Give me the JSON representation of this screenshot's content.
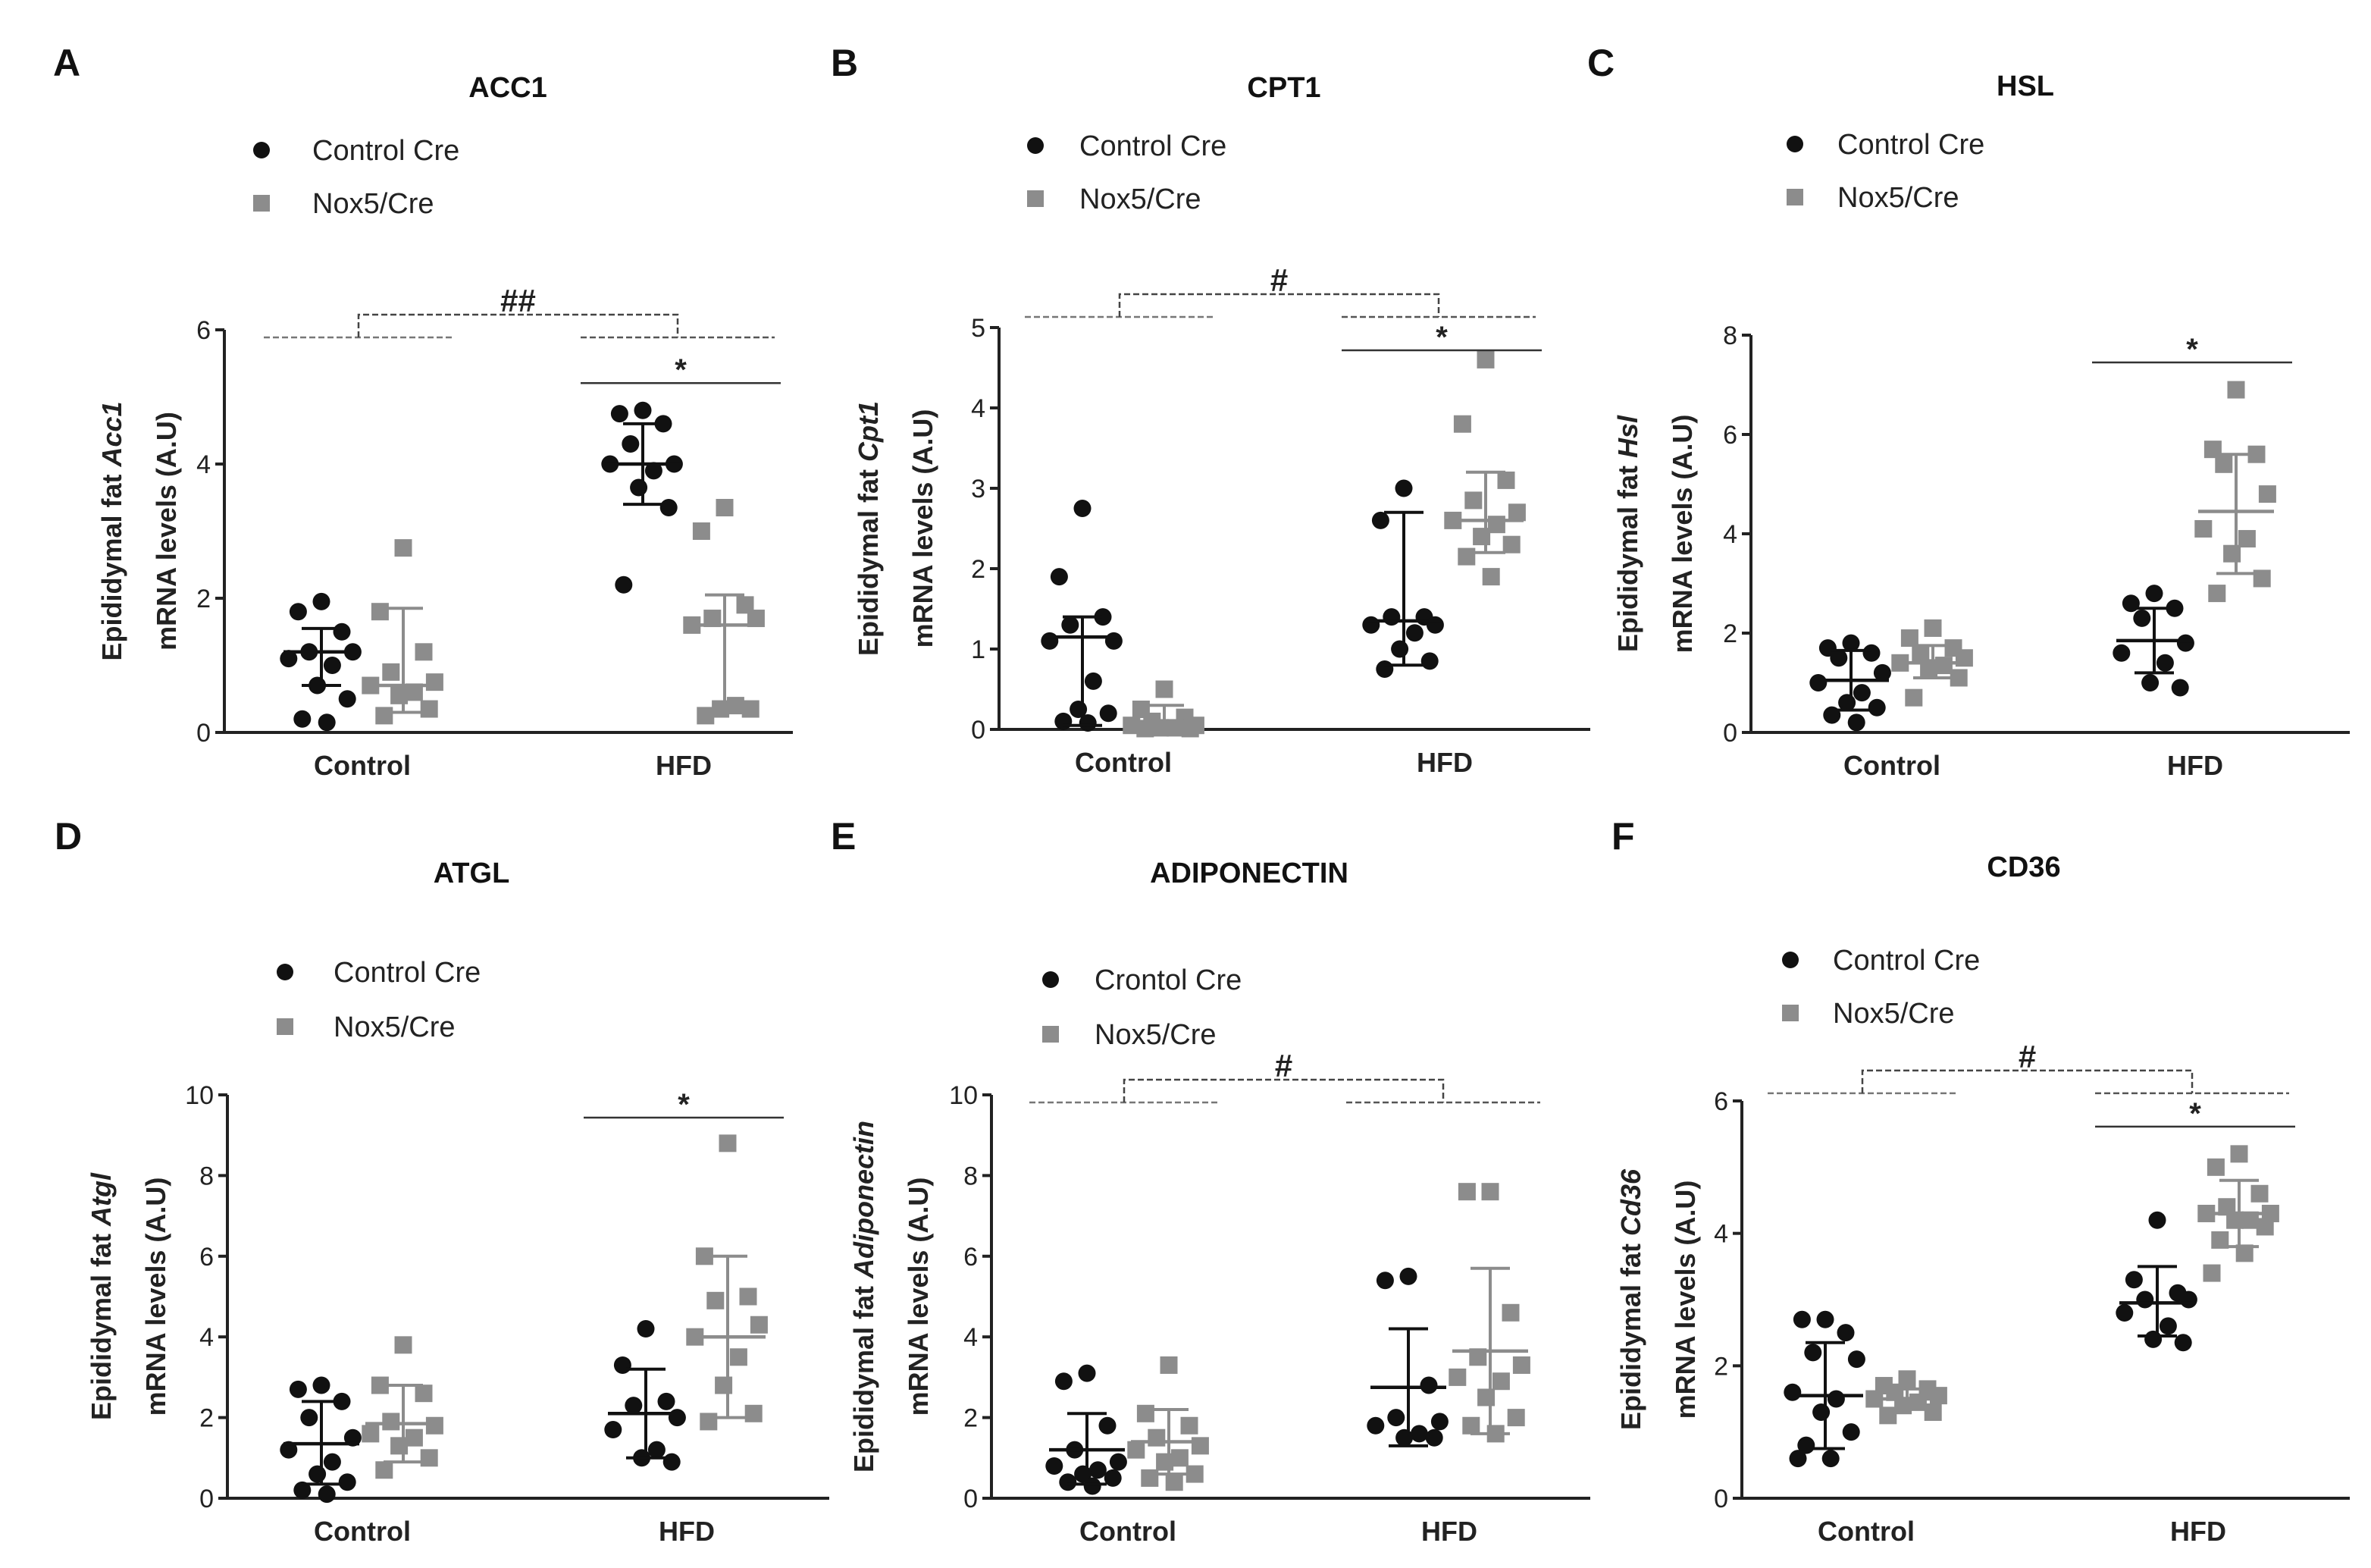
{
  "colors": {
    "control": "#111111",
    "nox": "#8c8c8c",
    "axis": "#222222"
  },
  "chart_data": [
    {
      "type": "scatter",
      "panel_letter": "A",
      "title": "ACC1",
      "ylabel_line1_prefix": "Epididymal fat ",
      "ylabel_gene": "Acc1",
      "ylabel_line2": "mRNA levels (A.U)",
      "categories": [
        "Control",
        "HFD"
      ],
      "ylim": [
        0,
        6
      ],
      "yticks": [
        "0",
        "2",
        "4",
        "6"
      ],
      "legend": [
        "Control  Cre",
        "Nox5/Cre"
      ],
      "series": [
        {
          "name": "Control  Cre",
          "marker": "circle",
          "groups": [
            {
              "values": [
                1.95,
                1.8,
                1.5,
                1.2,
                1.2,
                1.1,
                1.0,
                0.7,
                0.5,
                0.2,
                0.15
              ],
              "mean": 1.2,
              "sd_low": 0.7,
              "sd_high": 1.55
            },
            {
              "values": [
                4.8,
                4.75,
                4.6,
                4.3,
                4.0,
                4.0,
                3.9,
                3.65,
                3.35,
                2.2
              ],
              "mean": 4.0,
              "sd_low": 3.4,
              "sd_high": 4.6
            }
          ]
        },
        {
          "name": "Nox5/Cre",
          "marker": "square",
          "groups": [
            {
              "values": [
                2.75,
                1.8,
                1.2,
                0.9,
                0.75,
                0.7,
                0.6,
                0.55,
                0.35,
                0.25
              ],
              "mean": 0.7,
              "sd_low": 0.3,
              "sd_high": 1.85
            },
            {
              "values": [
                3.35,
                3.0,
                1.9,
                1.7,
                1.7,
                1.6,
                0.4,
                0.35,
                0.35,
                0.25
              ],
              "mean": 1.6,
              "sd_low": 0.3,
              "sd_high": 2.05
            }
          ]
        }
      ],
      "annotations": [
        {
          "text": "##",
          "kind": "interaction"
        },
        {
          "text": "*",
          "kind": "hfd"
        }
      ]
    },
    {
      "type": "scatter",
      "panel_letter": "B",
      "title": "CPT1",
      "ylabel_line1_prefix": "Epididymal fat ",
      "ylabel_gene": "Cpt1",
      "ylabel_line2": "mRNA levels (A.U)",
      "categories": [
        "Control",
        "HFD"
      ],
      "ylim": [
        0,
        5
      ],
      "yticks": [
        "0",
        "1",
        "2",
        "3",
        "4",
        "5"
      ],
      "legend": [
        "Control  Cre",
        "Nox5/Cre"
      ],
      "series": [
        {
          "name": "Control  Cre",
          "marker": "circle",
          "groups": [
            {
              "values": [
                2.75,
                1.9,
                1.4,
                1.3,
                1.1,
                1.1,
                0.6,
                0.25,
                0.2,
                0.1,
                0.08
              ],
              "mean": 1.15,
              "sd_low": 0.05,
              "sd_high": 1.4
            },
            {
              "values": [
                3.0,
                2.6,
                1.4,
                1.4,
                1.3,
                1.3,
                1.2,
                1.0,
                0.85,
                0.75
              ],
              "mean": 1.35,
              "sd_low": 0.8,
              "sd_high": 2.7
            }
          ]
        },
        {
          "name": "Nox5/Cre",
          "marker": "square",
          "groups": [
            {
              "values": [
                0.5,
                0.25,
                0.15,
                0.1,
                0.05,
                0.05,
                0.02,
                0.02,
                0.01,
                0.01
              ],
              "mean": 0.05,
              "sd_low": 0.0,
              "sd_high": 0.3
            },
            {
              "values": [
                4.6,
                3.8,
                3.1,
                2.85,
                2.7,
                2.6,
                2.55,
                2.4,
                2.3,
                2.15,
                1.9
              ],
              "mean": 2.6,
              "sd_low": 2.2,
              "sd_high": 3.2
            }
          ]
        }
      ],
      "annotations": [
        {
          "text": "#",
          "kind": "interaction"
        },
        {
          "text": "*",
          "kind": "hfd"
        }
      ]
    },
    {
      "type": "scatter",
      "panel_letter": "C",
      "title": "HSL",
      "ylabel_line1_prefix": "Epididymal fat ",
      "ylabel_gene": "Hsl",
      "ylabel_line2": "mRNA levels (A.U)",
      "categories": [
        "Control",
        "HFD"
      ],
      "ylim": [
        0,
        8
      ],
      "yticks": [
        "0",
        "2",
        "4",
        "6",
        "8"
      ],
      "legend": [
        "Control  Cre",
        "Nox5/Cre"
      ],
      "series": [
        {
          "name": "Control  Cre",
          "marker": "circle",
          "groups": [
            {
              "values": [
                1.8,
                1.7,
                1.6,
                1.5,
                1.2,
                1.0,
                0.8,
                0.6,
                0.5,
                0.35,
                0.2
              ],
              "mean": 1.05,
              "sd_low": 0.45,
              "sd_high": 1.65
            },
            {
              "values": [
                2.8,
                2.6,
                2.5,
                2.3,
                1.8,
                1.6,
                1.4,
                1.0,
                0.9
              ],
              "mean": 1.85,
              "sd_low": 1.2,
              "sd_high": 2.5
            }
          ]
        },
        {
          "name": "Nox5/Cre",
          "marker": "square",
          "groups": [
            {
              "values": [
                2.1,
                1.9,
                1.7,
                1.6,
                1.5,
                1.4,
                1.35,
                1.3,
                1.1,
                0.7
              ],
              "mean": 1.4,
              "sd_low": 1.1,
              "sd_high": 1.75
            },
            {
              "values": [
                6.9,
                5.7,
                5.6,
                5.4,
                4.8,
                4.1,
                3.9,
                3.6,
                3.1,
                2.8
              ],
              "mean": 4.45,
              "sd_low": 3.2,
              "sd_high": 5.6
            }
          ]
        }
      ],
      "annotations": [
        {
          "text": "*",
          "kind": "hfd"
        }
      ]
    },
    {
      "type": "scatter",
      "panel_letter": "D",
      "title": "ATGL",
      "ylabel_line1_prefix": "Epididymal fat ",
      "ylabel_gene": "Atgl",
      "ylabel_line2": "mRNA levels (A.U)",
      "categories": [
        "Control",
        "HFD"
      ],
      "ylim": [
        0,
        10
      ],
      "yticks": [
        "0",
        "2",
        "4",
        "6",
        "8",
        "10"
      ],
      "legend": [
        "Control Cre",
        "Nox5/Cre"
      ],
      "series": [
        {
          "name": "Control Cre",
          "marker": "circle",
          "groups": [
            {
              "values": [
                2.8,
                2.7,
                2.4,
                2.0,
                1.5,
                1.2,
                0.9,
                0.6,
                0.4,
                0.2,
                0.1
              ],
              "mean": 1.35,
              "sd_low": 0.35,
              "sd_high": 2.4
            },
            {
              "values": [
                4.2,
                3.3,
                2.4,
                2.3,
                2.0,
                1.7,
                1.2,
                1.0,
                0.9
              ],
              "mean": 2.1,
              "sd_low": 1.0,
              "sd_high": 3.2
            }
          ]
        },
        {
          "name": "Nox5/Cre",
          "marker": "square",
          "groups": [
            {
              "values": [
                3.8,
                2.8,
                2.6,
                1.9,
                1.8,
                1.6,
                1.5,
                1.3,
                1.0,
                0.7
              ],
              "mean": 1.85,
              "sd_low": 0.9,
              "sd_high": 2.8
            },
            {
              "values": [
                8.8,
                6.0,
                5.0,
                4.9,
                4.3,
                4.0,
                3.5,
                2.8,
                2.1,
                1.9
              ],
              "mean": 4.0,
              "sd_low": 2.0,
              "sd_high": 6.0
            }
          ]
        }
      ],
      "annotations": [
        {
          "text": "*",
          "kind": "hfd"
        }
      ]
    },
    {
      "type": "scatter",
      "panel_letter": "E",
      "title": "ADIPONECTIN",
      "ylabel_line1_prefix": "Epididymal fat ",
      "ylabel_gene": "Adiponectin",
      "ylabel_line2": "mRNA levels (A.U)",
      "categories": [
        "Control",
        "HFD"
      ],
      "ylim": [
        0,
        10
      ],
      "yticks": [
        "0",
        "2",
        "4",
        "6",
        "8",
        "10"
      ],
      "legend": [
        "Crontol Cre",
        "Nox5/Cre"
      ],
      "series": [
        {
          "name": "Crontol Cre",
          "marker": "circle",
          "groups": [
            {
              "values": [
                3.1,
                2.9,
                1.8,
                1.2,
                0.9,
                0.8,
                0.7,
                0.6,
                0.5,
                0.4,
                0.3
              ],
              "mean": 1.2,
              "sd_low": 0.35,
              "sd_high": 2.1
            },
            {
              "values": [
                5.5,
                5.4,
                2.8,
                2.0,
                1.9,
                1.8,
                1.6,
                1.5,
                1.5
              ],
              "mean": 2.75,
              "sd_low": 1.3,
              "sd_high": 4.2
            }
          ]
        },
        {
          "name": "Nox5/Cre",
          "marker": "square",
          "groups": [
            {
              "values": [
                3.3,
                2.1,
                1.8,
                1.5,
                1.3,
                1.2,
                1.0,
                0.9,
                0.6,
                0.5,
                0.4
              ],
              "mean": 1.4,
              "sd_low": 0.6,
              "sd_high": 2.2
            },
            {
              "values": [
                7.6,
                7.6,
                4.6,
                3.5,
                3.3,
                3.0,
                2.9,
                2.5,
                2.0,
                1.8,
                1.6
              ],
              "mean": 3.65,
              "sd_low": 1.6,
              "sd_high": 5.7
            }
          ]
        }
      ],
      "annotations": [
        {
          "text": "#",
          "kind": "interaction"
        }
      ]
    },
    {
      "type": "scatter",
      "panel_letter": "F",
      "title": "CD36",
      "ylabel_line1_prefix": "Epididymal fat ",
      "ylabel_gene": "Cd36",
      "ylabel_line2": "mRNA levels (A.U)",
      "categories": [
        "Control",
        "HFD"
      ],
      "ylim": [
        0,
        6
      ],
      "yticks": [
        "0",
        "2",
        "4",
        "6"
      ],
      "legend": [
        "Control Cre",
        "Nox5/Cre"
      ],
      "series": [
        {
          "name": "Control Cre",
          "marker": "circle",
          "groups": [
            {
              "values": [
                2.7,
                2.7,
                2.5,
                2.2,
                2.1,
                1.6,
                1.5,
                1.3,
                1.0,
                0.8,
                0.6,
                0.6
              ],
              "mean": 1.55,
              "sd_low": 0.75,
              "sd_high": 2.35
            },
            {
              "values": [
                4.2,
                3.3,
                3.1,
                3.0,
                3.0,
                2.8,
                2.6,
                2.4,
                2.35
              ],
              "mean": 2.95,
              "sd_low": 2.45,
              "sd_high": 3.5
            }
          ]
        },
        {
          "name": "Nox5/Cre",
          "marker": "square",
          "groups": [
            {
              "values": [
                1.8,
                1.7,
                1.65,
                1.6,
                1.55,
                1.5,
                1.45,
                1.4,
                1.3,
                1.25
              ],
              "mean": 1.5,
              "sd_low": 1.35,
              "sd_high": 1.65
            },
            {
              "values": [
                5.2,
                5.0,
                4.6,
                4.4,
                4.3,
                4.3,
                4.2,
                4.2,
                4.1,
                3.9,
                3.7,
                3.4
              ],
              "mean": 4.3,
              "sd_low": 3.8,
              "sd_high": 4.8
            }
          ]
        }
      ],
      "annotations": [
        {
          "text": "#",
          "kind": "interaction"
        },
        {
          "text": "*",
          "kind": "hfd"
        }
      ]
    }
  ]
}
